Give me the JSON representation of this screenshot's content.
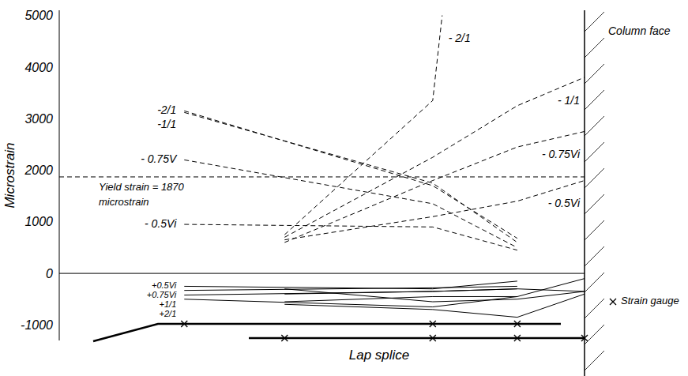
{
  "chart_data": {
    "type": "line",
    "y_label": "Microstrain",
    "xlim": [
      0,
      100
    ],
    "ylim": [
      -1300,
      5100
    ],
    "yticks": [
      -1000,
      0,
      1000,
      2000,
      3000,
      4000,
      5000
    ],
    "tick_labels": "y",
    "baseline": 0,
    "yield_line": {
      "value": 1870,
      "label": [
        "Yield strain = 1870",
        "microstrain"
      ],
      "line_style": "dashed"
    },
    "annotations": {
      "column_face": "Column face",
      "strain_gauge": "Strain gauge",
      "lap_splice": "Lap splice"
    },
    "series": [
      {
        "name": "-2/1",
        "color": "#000000",
        "line_style": "dashed",
        "x": [
          23.8,
          71.1,
          87.2
        ],
        "values": [
          3150,
          1700,
          680
        ]
      },
      {
        "name": "-1/1",
        "color": "#000000",
        "line_style": "dashed",
        "x": [
          23.8,
          71.1,
          87.2
        ],
        "values": [
          3120,
          1750,
          600
        ]
      },
      {
        "name": "- 0.75V",
        "color": "#000000",
        "line_style": "dashed",
        "x": [
          23.8,
          71.1,
          87.2
        ],
        "values": [
          2200,
          1350,
          500
        ]
      },
      {
        "name": "- 0.5Vi",
        "color": "#000000",
        "line_style": "dashed",
        "x": [
          23.8,
          71.1,
          87.2
        ],
        "values": [
          950,
          900,
          450
        ]
      },
      {
        "name": "- 2/1",
        "color": "#000000",
        "line_style": "dashed",
        "x": [
          42.9,
          71.1,
          72.9
        ],
        "values": [
          750,
          3350,
          5000
        ]
      },
      {
        "name": "- 1/1",
        "color": "#000000",
        "line_style": "dashed",
        "x": [
          42.9,
          71.1,
          87.2,
          100
        ],
        "values": [
          700,
          2250,
          3250,
          3800
        ]
      },
      {
        "name": "- 0.75Vi",
        "color": "#000000",
        "line_style": "dashed",
        "x": [
          42.9,
          71.1,
          87.2,
          100
        ],
        "values": [
          600,
          1800,
          2450,
          2750
        ]
      },
      {
        "name": "- 0.5Vi",
        "color": "#000000",
        "line_style": "dashed",
        "x": [
          42.9,
          71.1,
          87.2,
          100
        ],
        "values": [
          650,
          1100,
          1400,
          1800
        ]
      },
      {
        "name": "+0.5Vi",
        "color": "#000000",
        "line_style": "solid",
        "x": [
          23.8,
          71.1,
          87.2
        ],
        "values": [
          -250,
          -300,
          -150
        ]
      },
      {
        "name": "+0.75Vi",
        "color": "#000000",
        "line_style": "solid",
        "x": [
          23.8,
          71.1,
          87.2
        ],
        "values": [
          -330,
          -280,
          -250
        ]
      },
      {
        "name": "+1/1",
        "color": "#000000",
        "line_style": "solid",
        "x": [
          23.8,
          71.1,
          87.2
        ],
        "values": [
          -420,
          -350,
          -300
        ]
      },
      {
        "name": "+2/1",
        "color": "#000000",
        "line_style": "solid",
        "x": [
          23.8,
          71.1,
          87.2
        ],
        "values": [
          -500,
          -650,
          -450
        ]
      },
      {
        "color": "#000000",
        "line_style": "solid",
        "x": [
          42.9,
          71.1,
          87.2,
          100
        ],
        "values": [
          -550,
          -450,
          -450,
          -100
        ]
      },
      {
        "color": "#000000",
        "line_style": "solid",
        "x": [
          42.9,
          71.1,
          87.2,
          100
        ],
        "values": [
          -400,
          -350,
          -300,
          -350
        ]
      },
      {
        "color": "#000000",
        "line_style": "solid",
        "x": [
          42.9,
          71.1,
          87.2,
          100
        ],
        "values": [
          -300,
          -550,
          -500,
          -350
        ]
      },
      {
        "color": "#000000",
        "line_style": "solid",
        "x": [
          42.9,
          71.1,
          87.2,
          100
        ],
        "values": [
          -600,
          -700,
          -850,
          -400
        ]
      }
    ]
  }
}
